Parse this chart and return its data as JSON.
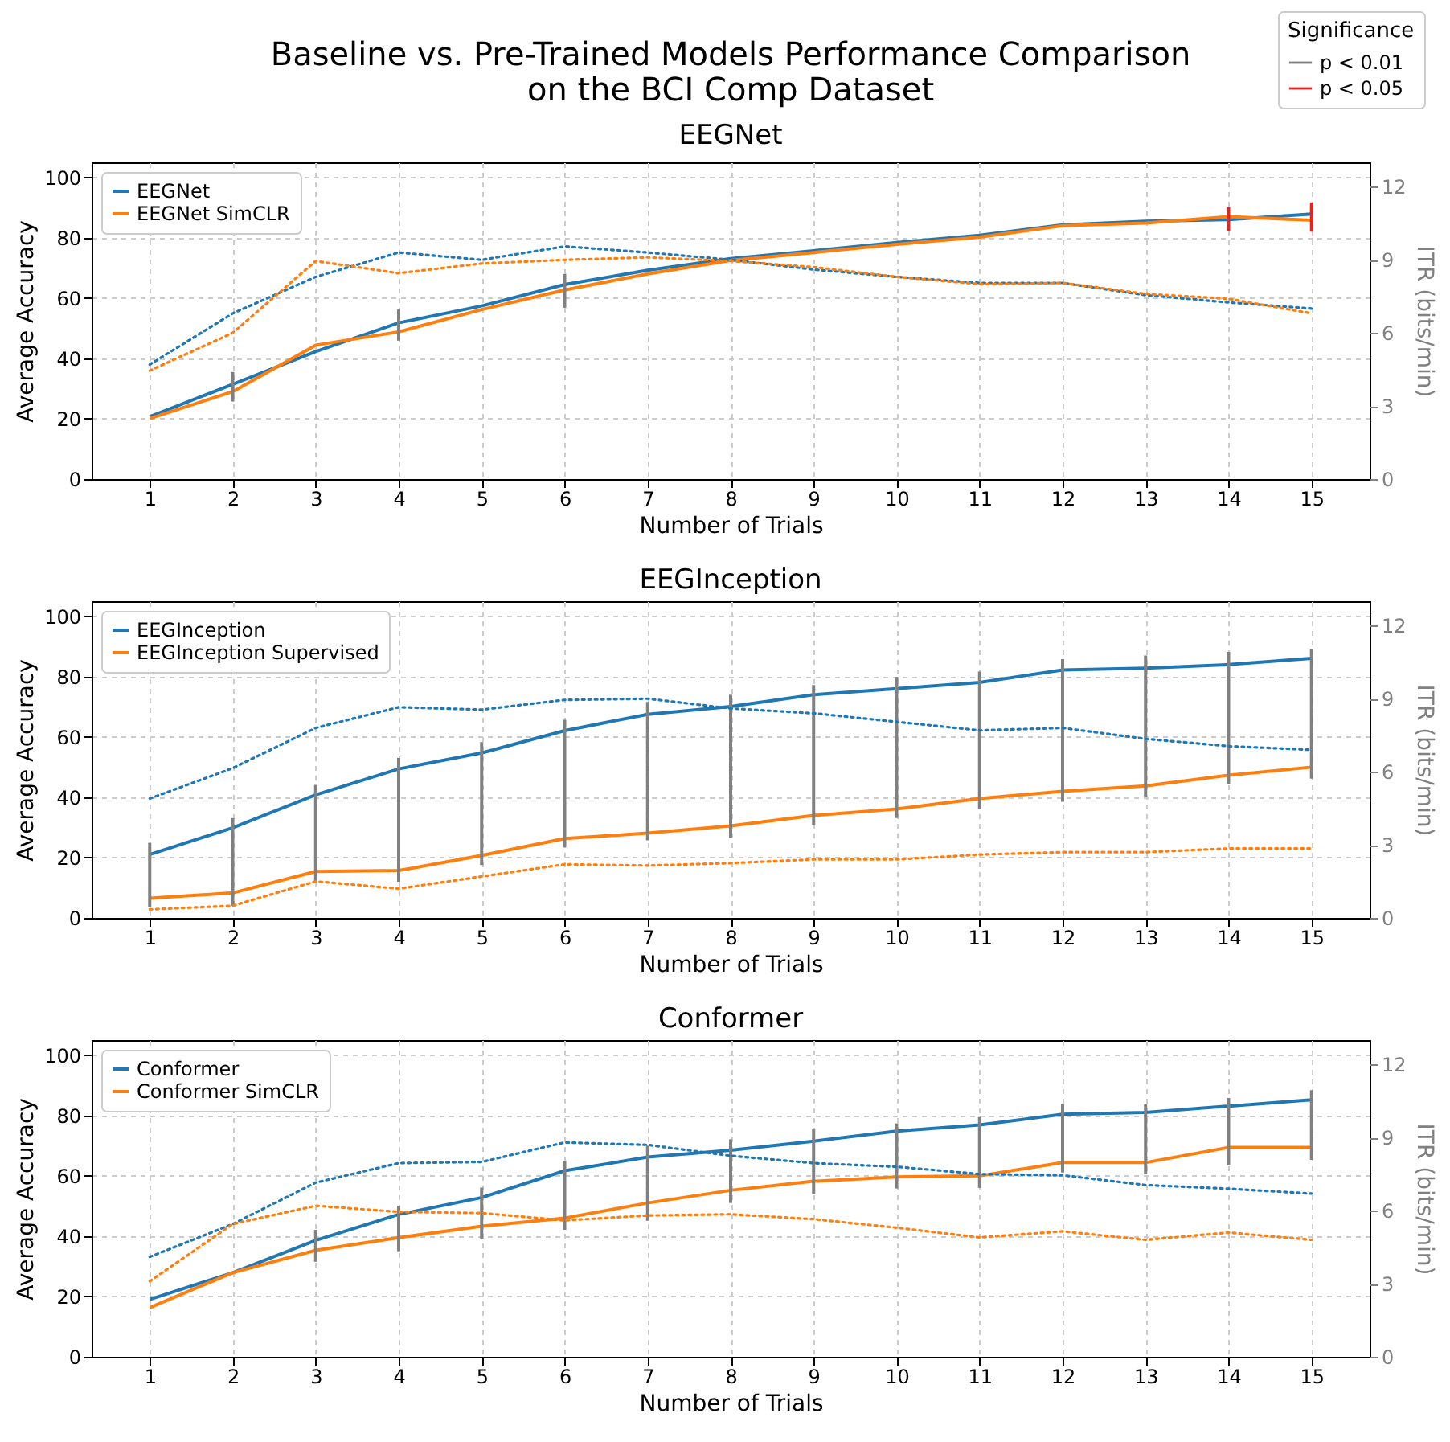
{
  "chart_data": [
    {
      "type": "line",
      "title": "Baseline vs. Pre-Trained Models Performance Comparison\non the BCI Comp Dataset",
      "subtitle": "EEGNet",
      "xlabel": "Number of Trials",
      "ylabel": "Average Accuracy",
      "y2label": "ITR (bits/min)",
      "x": [
        1,
        2,
        3,
        4,
        5,
        6,
        7,
        8,
        9,
        10,
        11,
        12,
        13,
        14,
        15
      ],
      "xlim": [
        0.3,
        15.7
      ],
      "xticks": [
        1,
        2,
        3,
        4,
        5,
        6,
        7,
        8,
        9,
        10,
        11,
        12,
        13,
        14,
        15
      ],
      "ylim": [
        0,
        105
      ],
      "yticks": [
        0,
        20,
        40,
        60,
        80,
        100
      ],
      "y2lim": [
        0,
        13
      ],
      "y2ticks": [
        0,
        3,
        6,
        9,
        12
      ],
      "grid": true,
      "legend": "top left",
      "legend_title": "Significance",
      "series": [
        {
          "name": "EEGNet",
          "color": "#1f77b4",
          "values": [
            20.7,
            31.4,
            42.3,
            51.8,
            57.4,
            64.5,
            69.2,
            73.1,
            75.7,
            78.4,
            80.8,
            84.3,
            85.5,
            86,
            87.9
          ]
        },
        {
          "name": "EEGNet SimCLR",
          "color": "#ff7f0e",
          "values": [
            20.1,
            29,
            44.4,
            48.8,
            56.2,
            62.7,
            68,
            72.5,
            75.1,
            77.8,
            80.2,
            84,
            84.9,
            87,
            85.8
          ]
        },
        {
          "color": "#1f77b4",
          "axis": "y2",
          "line_style": "dotted",
          "values": [
            4.7,
            6.8,
            8.3,
            9.3,
            9.0,
            9.55,
            9.3,
            9.0,
            8.6,
            8.3,
            8.05,
            8.05,
            7.55,
            7.25,
            7.0
          ]
        },
        {
          "color": "#ff7f0e",
          "axis": "y2",
          "line_style": "dotted",
          "values": [
            4.45,
            6.0,
            8.95,
            8.45,
            8.85,
            9.0,
            9.1,
            8.95,
            8.7,
            8.3,
            8.0,
            8.05,
            7.6,
            7.4,
            6.8
          ]
        },
        {
          "name": "p < 0.01",
          "type": "bar",
          "color": "#808080",
          "base": [
            null,
            25.7,
            null,
            45.9,
            null,
            56.8,
            null,
            null,
            null,
            null,
            null,
            null,
            null,
            null,
            null
          ],
          "values": [
            null,
            9.8,
            null,
            10.3,
            null,
            11.2,
            null,
            null,
            null,
            null,
            null,
            null,
            null,
            null,
            null
          ]
        },
        {
          "name": "p < 0.05",
          "type": "bar",
          "color": "#e52420",
          "base": [
            null,
            null,
            null,
            null,
            null,
            null,
            null,
            null,
            null,
            null,
            null,
            null,
            null,
            82.2,
            82
          ],
          "values": [
            null,
            null,
            null,
            null,
            null,
            null,
            null,
            null,
            null,
            null,
            null,
            null,
            null,
            8.0,
            9.7
          ]
        }
      ]
    },
    {
      "type": "line",
      "title": "EEGInception",
      "xlabel": "Number of Trials",
      "ylabel": "Average Accuracy",
      "y2label": "ITR (bits/min)",
      "x": [
        1,
        2,
        3,
        4,
        5,
        6,
        7,
        8,
        9,
        10,
        11,
        12,
        13,
        14,
        15
      ],
      "xlim": [
        0.3,
        15.7
      ],
      "xticks": [
        1,
        2,
        3,
        4,
        5,
        6,
        7,
        8,
        9,
        10,
        11,
        12,
        13,
        14,
        15
      ],
      "ylim": [
        0,
        105
      ],
      "yticks": [
        0,
        20,
        40,
        60,
        80,
        100
      ],
      "y2lim": [
        0,
        13
      ],
      "y2ticks": [
        0,
        3,
        6,
        9,
        12
      ],
      "grid": true,
      "legend": "top left",
      "series": [
        {
          "name": "EEGInception",
          "color": "#1f77b4",
          "values": [
            21,
            29.9,
            40.8,
            49.4,
            54.7,
            62.1,
            67.5,
            70.1,
            74,
            76,
            78.1,
            82.2,
            82.8,
            84,
            86.1
          ]
        },
        {
          "name": "EEGInception Supervised",
          "color": "#ff7f0e",
          "values": [
            6.5,
            8.3,
            15.4,
            15.7,
            20.7,
            26.3,
            28.1,
            30.5,
            34,
            36.1,
            39.6,
            42,
            43.8,
            47.3,
            50
          ]
        },
        {
          "color": "#1f77b4",
          "axis": "y2",
          "line_style": "dotted",
          "values": [
            4.9,
            6.15,
            7.8,
            8.65,
            8.55,
            8.95,
            9.0,
            8.6,
            8.4,
            8.05,
            7.7,
            7.8,
            7.35,
            7.05,
            6.9
          ]
        },
        {
          "color": "#ff7f0e",
          "axis": "y2",
          "line_style": "dotted",
          "values": [
            0.35,
            0.5,
            1.5,
            1.2,
            1.7,
            2.2,
            2.15,
            2.25,
            2.4,
            2.4,
            2.6,
            2.7,
            2.7,
            2.85,
            2.85
          ]
        },
        {
          "type": "bar",
          "color": "#808080",
          "base": [
            3.6,
            4,
            11.8,
            12,
            17.5,
            23.4,
            25.7,
            26.6,
            30.8,
            33.1,
            36,
            38.5,
            40.2,
            44.4,
            46.2
          ],
          "values": [
            21.3,
            29.1,
            32.3,
            41,
            40.8,
            42.3,
            45.9,
            47.4,
            46.4,
            46.8,
            45.7,
            47.3,
            46.8,
            43.8,
            43.1
          ]
        }
      ]
    },
    {
      "type": "line",
      "title": "Conformer",
      "xlabel": "Number of Trials",
      "ylabel": "Average Accuracy",
      "y2label": "ITR (bits/min)",
      "x": [
        1,
        2,
        3,
        4,
        5,
        6,
        7,
        8,
        9,
        10,
        11,
        12,
        13,
        14,
        15
      ],
      "xlim": [
        0.3,
        15.7
      ],
      "xticks": [
        1,
        2,
        3,
        4,
        5,
        6,
        7,
        8,
        9,
        10,
        11,
        12,
        13,
        14,
        15
      ],
      "ylim": [
        0,
        105
      ],
      "yticks": [
        0,
        20,
        40,
        60,
        80,
        100
      ],
      "y2lim": [
        0,
        13
      ],
      "y2ticks": [
        0,
        3,
        6,
        9,
        12
      ],
      "grid": true,
      "legend": "top left",
      "series": [
        {
          "name": "Conformer",
          "color": "#1f77b4",
          "values": [
            19,
            27.9,
            38.6,
            47.2,
            52.8,
            61.7,
            66.2,
            68.5,
            71.5,
            74.8,
            76.9,
            80.4,
            81,
            83.1,
            85.2
          ]
        },
        {
          "name": "Conformer SimCLR",
          "color": "#ff7f0e",
          "values": [
            16.3,
            27.9,
            35.3,
            39.5,
            43.3,
            46,
            51,
            55.2,
            58.2,
            59.6,
            60,
            64.4,
            64.4,
            69.4,
            69.4
          ]
        },
        {
          "color": "#1f77b4",
          "axis": "y2",
          "line_style": "dotted",
          "values": [
            4.1,
            5.45,
            7.15,
            7.95,
            8.0,
            8.8,
            8.7,
            8.25,
            7.95,
            7.8,
            7.5,
            7.45,
            7.05,
            6.9,
            6.7
          ]
        },
        {
          "color": "#ff7f0e",
          "axis": "y2",
          "line_style": "dotted",
          "values": [
            3.1,
            5.45,
            6.2,
            5.95,
            5.9,
            5.6,
            5.8,
            5.85,
            5.65,
            5.3,
            4.9,
            5.15,
            4.8,
            5.1,
            4.8
          ]
        },
        {
          "type": "bar",
          "color": "#808080",
          "base": [
            null,
            null,
            31.5,
            35,
            39.2,
            42.1,
            45.1,
            51,
            54,
            55.8,
            56,
            61.1,
            60.5,
            63.5,
            65.3
          ],
          "values": [
            null,
            null,
            10.6,
            15.1,
            16.9,
            22.9,
            24.9,
            21.1,
            21.4,
            21.6,
            23.5,
            22.6,
            23.2,
            22.3,
            23.1
          ]
        }
      ]
    }
  ]
}
